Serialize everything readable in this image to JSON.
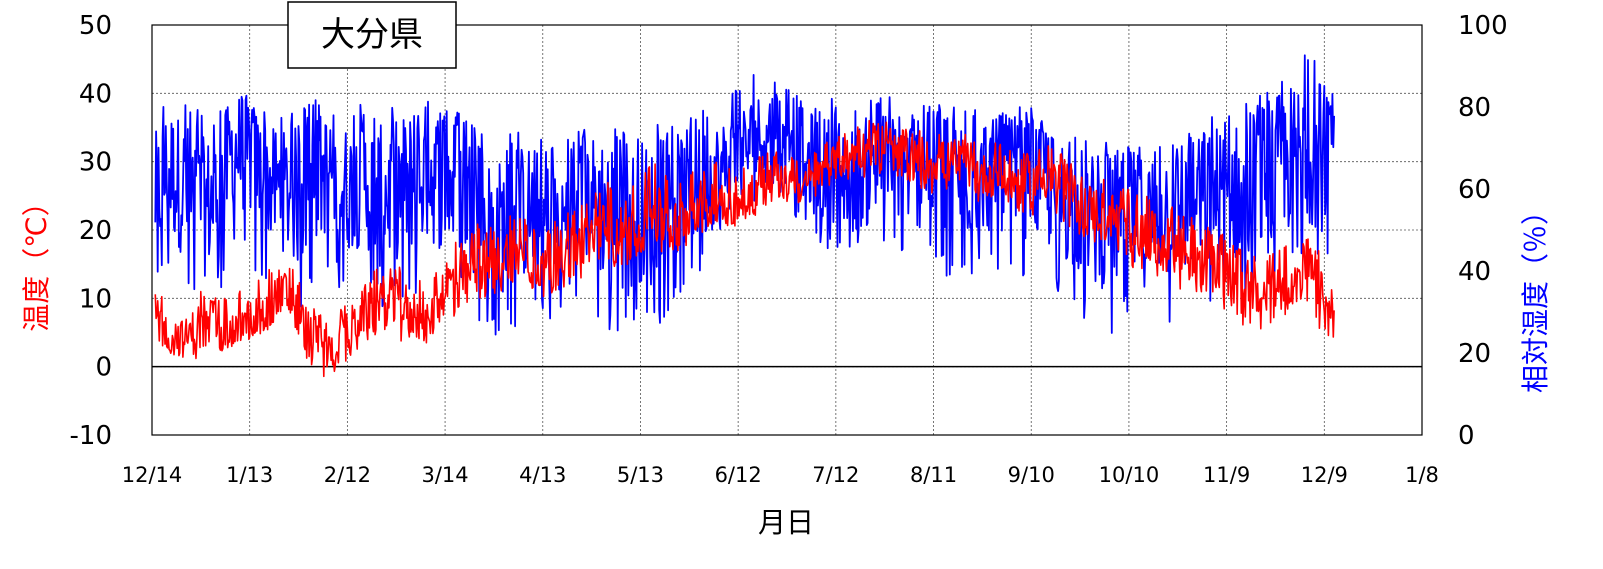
{
  "chart_data": {
    "type": "line",
    "title": "大分県",
    "xlabel": "月日",
    "ylabel_left": "温度（℃）",
    "ylabel_right": "相対湿度（％）",
    "x_ticks": [
      "12/14",
      "1/13",
      "2/12",
      "3/14",
      "4/13",
      "5/13",
      "6/12",
      "7/12",
      "8/11",
      "9/10",
      "10/10",
      "11/9",
      "12/9",
      "1/8"
    ],
    "xlim_days": [
      0,
      390
    ],
    "ylim_left": [
      -10,
      50
    ],
    "left_ticks": [
      "-10",
      "0",
      "10",
      "20",
      "30",
      "40",
      "50"
    ],
    "ylim_right": [
      0,
      100
    ],
    "right_ticks": [
      "0",
      "20",
      "40",
      "60",
      "80",
      "100"
    ],
    "grid": true,
    "series": [
      {
        "name": "温度",
        "axis": "left",
        "color": "#ff0000",
        "x_days": [
          1,
          5,
          10,
          15,
          20,
          25,
          30,
          35,
          40,
          45,
          50,
          55,
          60,
          65,
          70,
          75,
          80,
          85,
          90,
          95,
          100,
          105,
          110,
          115,
          120,
          125,
          130,
          135,
          140,
          145,
          150,
          155,
          160,
          165,
          170,
          175,
          180,
          185,
          190,
          195,
          200,
          205,
          210,
          215,
          220,
          225,
          230,
          235,
          240,
          245,
          250,
          255,
          260,
          265,
          270,
          275,
          280,
          285,
          290,
          295,
          300,
          305,
          310,
          315,
          320,
          325,
          330,
          335,
          340,
          345,
          350,
          355,
          360,
          363
        ],
        "y": [
          8,
          5,
          4,
          6,
          5,
          5,
          7,
          8,
          12,
          7,
          4,
          2,
          5,
          8,
          10,
          9,
          8,
          6,
          12,
          13,
          15,
          15,
          17,
          16,
          14,
          16,
          17,
          19,
          20,
          18,
          21,
          22,
          20,
          23,
          24,
          25,
          23,
          26,
          27,
          27,
          26,
          28,
          30,
          31,
          32,
          32,
          31,
          30,
          30,
          30,
          29,
          28,
          28,
          27,
          27,
          28,
          26,
          24,
          23,
          22,
          20,
          19,
          18,
          17,
          16,
          15,
          13,
          11,
          10,
          11,
          13,
          15,
          9,
          7
        ],
        "min": [
          3,
          2,
          1,
          1,
          2,
          3,
          4,
          5,
          8,
          3,
          -1,
          -2,
          1,
          3,
          5,
          4,
          3,
          3,
          6,
          8,
          10,
          10,
          12,
          12,
          10,
          11,
          12,
          14,
          15,
          14,
          16,
          17,
          16,
          18,
          20,
          21,
          20,
          22,
          24,
          24,
          23,
          25,
          26,
          27,
          28,
          28,
          27,
          26,
          25,
          25,
          24,
          24,
          24,
          23,
          22,
          23,
          21,
          19,
          18,
          17,
          15,
          13,
          12,
          11,
          10,
          9,
          8,
          6,
          5,
          6,
          8,
          9,
          4,
          4
        ],
        "max": [
          12,
          10,
          9,
          12,
          10,
          10,
          13,
          14,
          17,
          13,
          9,
          6,
          10,
          13,
          15,
          15,
          14,
          11,
          18,
          19,
          21,
          21,
          23,
          22,
          19,
          22,
          23,
          25,
          28,
          24,
          29,
          30,
          27,
          29,
          30,
          31,
          28,
          31,
          32,
          31,
          30,
          32,
          34,
          35,
          36,
          36,
          35,
          35,
          34,
          34,
          34,
          33,
          33,
          32,
          32,
          33,
          31,
          29,
          28,
          27,
          26,
          25,
          24,
          23,
          22,
          21,
          19,
          17,
          16,
          17,
          19,
          21,
          15,
          10
        ]
      },
      {
        "name": "相対湿度",
        "axis": "right",
        "color": "#0000ff",
        "x_days": [
          1,
          5,
          10,
          15,
          20,
          25,
          30,
          35,
          40,
          45,
          50,
          55,
          60,
          65,
          70,
          75,
          80,
          85,
          90,
          95,
          100,
          105,
          110,
          115,
          120,
          125,
          130,
          135,
          140,
          145,
          150,
          155,
          160,
          165,
          170,
          175,
          180,
          185,
          190,
          195,
          200,
          205,
          210,
          215,
          220,
          225,
          230,
          235,
          240,
          245,
          250,
          255,
          260,
          265,
          270,
          275,
          280,
          285,
          290,
          295,
          300,
          305,
          310,
          315,
          320,
          325,
          330,
          335,
          340,
          345,
          350,
          355,
          360,
          363
        ],
        "y": [
          58,
          65,
          60,
          55,
          58,
          70,
          68,
          62,
          60,
          58,
          62,
          65,
          60,
          62,
          58,
          60,
          62,
          64,
          62,
          60,
          55,
          50,
          52,
          55,
          52,
          50,
          55,
          58,
          55,
          50,
          55,
          52,
          58,
          60,
          62,
          65,
          68,
          72,
          75,
          78,
          68,
          65,
          65,
          62,
          64,
          66,
          65,
          64,
          65,
          62,
          63,
          62,
          64,
          62,
          63,
          60,
          58,
          55,
          52,
          52,
          55,
          52,
          55,
          54,
          56,
          58,
          60,
          58,
          62,
          64,
          68,
          70,
          66,
          73
        ],
        "min": [
          33,
          40,
          35,
          30,
          32,
          45,
          40,
          38,
          35,
          30,
          35,
          38,
          34,
          36,
          30,
          32,
          30,
          32,
          30,
          34,
          26,
          24,
          26,
          26,
          27,
          25,
          28,
          32,
          22,
          24,
          28,
          26,
          32,
          38,
          40,
          48,
          52,
          56,
          60,
          58,
          48,
          46,
          44,
          42,
          44,
          46,
          44,
          40,
          42,
          36,
          38,
          40,
          40,
          38,
          37,
          34,
          30,
          26,
          26,
          24,
          28,
          26,
          26,
          28,
          30,
          28,
          33,
          30,
          30,
          32,
          40,
          42,
          40,
          45
        ],
        "max": [
          78,
          85,
          84,
          80,
          78,
          86,
          82,
          80,
          78,
          80,
          82,
          80,
          78,
          82,
          80,
          82,
          80,
          82,
          80,
          80,
          74,
          72,
          74,
          74,
          72,
          74,
          74,
          76,
          78,
          74,
          78,
          76,
          76,
          80,
          80,
          82,
          86,
          88,
          86,
          86,
          84,
          82,
          82,
          80,
          82,
          84,
          80,
          80,
          82,
          80,
          82,
          78,
          80,
          80,
          80,
          76,
          74,
          72,
          72,
          72,
          72,
          72,
          74,
          74,
          76,
          78,
          80,
          82,
          84,
          88,
          90,
          94,
          88,
          75
        ]
      }
    ]
  }
}
